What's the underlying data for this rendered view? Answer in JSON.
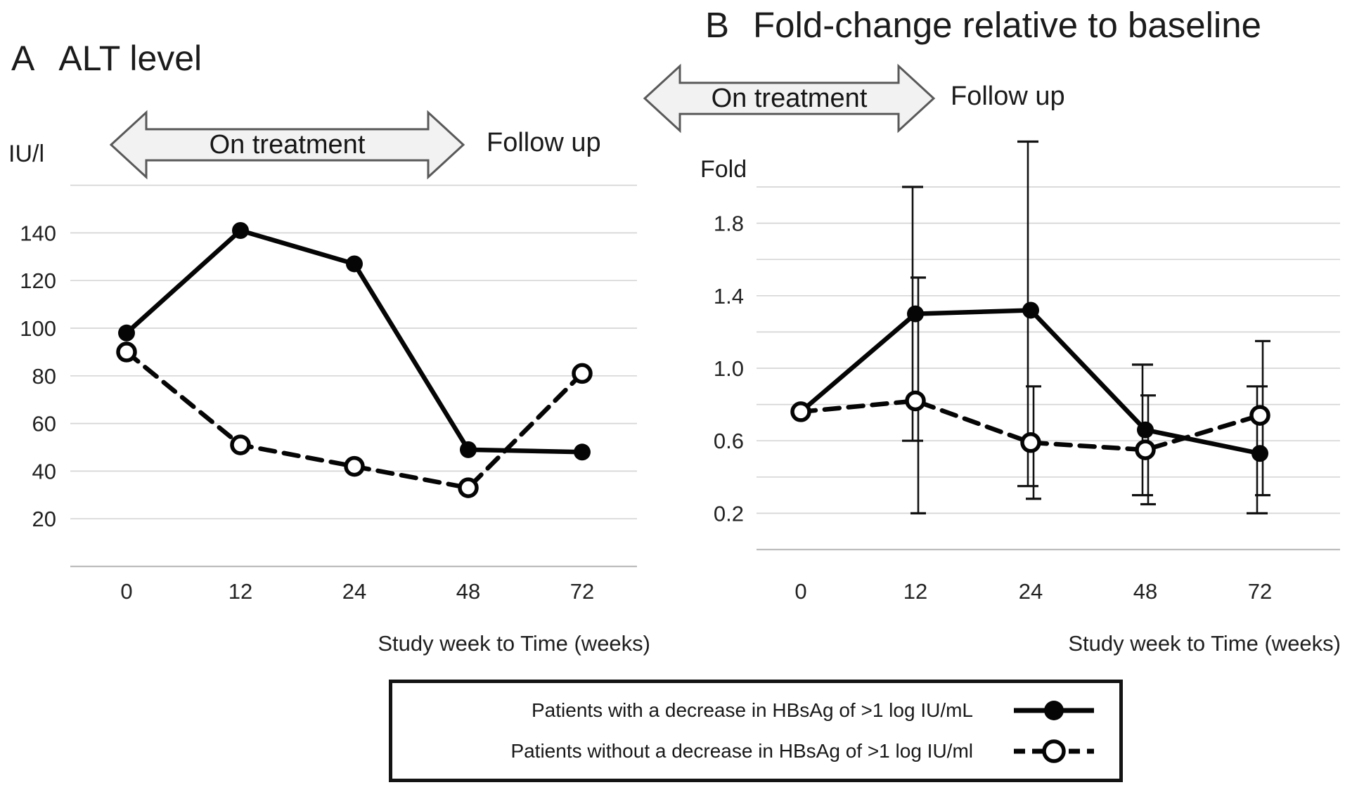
{
  "page": {
    "background": "#ffffff",
    "text_color": "#1d1d1d"
  },
  "legend": {
    "rows": [
      {
        "label": "Patients with a decrease in HBsAg of >1 log IU/mL",
        "style": "solid-line-filled-circle"
      },
      {
        "label": "Patients without a decrease in HBsAg of >1 log IU/ml",
        "style": "dashed-line-open-circle"
      }
    ],
    "border_color": "#141414",
    "series_color": "#050505"
  },
  "chart_data": [
    {
      "type": "line",
      "panel_label": "A",
      "title": "ALT level",
      "ylabel": "IU/l",
      "xlabel": "Study week to Time (weeks)",
      "arrow_label": "On treatment",
      "followup_label": "Follow up",
      "categories": [
        "0",
        "12",
        "24",
        "48",
        "72"
      ],
      "ylim": [
        0,
        160
      ],
      "yticks": [
        "20",
        "40",
        "60",
        "80",
        "100",
        "120",
        "140"
      ],
      "gridlines": [
        20,
        40,
        60,
        80,
        100,
        120,
        140,
        160
      ],
      "grid_on": true,
      "grid_color": "#d6d6d6",
      "axis_color": "#bdbdbd",
      "series": [
        {
          "name": "Patients with a decrease in HBsAg of >1 log IU/mL",
          "line": "solid",
          "marker": "filled-circle",
          "color": "#050505",
          "values": [
            98,
            141,
            127,
            49,
            48
          ]
        },
        {
          "name": "Patients without a decrease in HBsAg of >1 log IU/ml",
          "line": "dashed",
          "marker": "open-circle",
          "color": "#050505",
          "values": [
            90,
            51,
            42,
            33,
            81
          ]
        }
      ]
    },
    {
      "type": "line",
      "panel_label": "B",
      "title": "Fold-change relative to baseline",
      "ylabel": "Fold",
      "xlabel": "Study week to Time (weeks)",
      "arrow_label": "On treatment",
      "followup_label": "Follow up",
      "categories": [
        "0",
        "12",
        "24",
        "48",
        "72"
      ],
      "ylim": [
        0,
        2.2
      ],
      "yticks": [
        "0.2",
        "0.6",
        "1.0",
        "1.4",
        "1.8"
      ],
      "gridlines": [
        0.2,
        0.4,
        0.6,
        0.8,
        1.0,
        1.2,
        1.4,
        1.6,
        1.8,
        2.0
      ],
      "grid_on": true,
      "grid_color": "#d6d6d6",
      "axis_color": "#bdbdbd",
      "series": [
        {
          "name": "Patients with a decrease in HBsAg of >1 log IU/mL",
          "line": "solid",
          "marker": "filled-circle",
          "color": "#050505",
          "values": [
            0.76,
            1.3,
            1.32,
            0.66,
            0.53
          ],
          "markers_visible": [
            false,
            true,
            true,
            true,
            true
          ],
          "error_bars": [
            null,
            {
              "low": 0.6,
              "high": 2.0
            },
            {
              "low": 0.35,
              "high": 2.25
            },
            {
              "low": 0.3,
              "high": 1.02
            },
            {
              "low": 0.2,
              "high": 0.9
            }
          ]
        },
        {
          "name": "Patients without a decrease in HBsAg of >1 log IU/ml",
          "line": "dashed",
          "marker": "open-circle",
          "color": "#050505",
          "values": [
            0.76,
            0.82,
            0.59,
            0.55,
            0.74
          ],
          "error_bars": [
            null,
            {
              "low": 0.2,
              "high": 1.5
            },
            {
              "low": 0.28,
              "high": 0.9
            },
            {
              "low": 0.25,
              "high": 0.85
            },
            {
              "low": 0.3,
              "high": 1.15
            }
          ]
        }
      ]
    }
  ]
}
